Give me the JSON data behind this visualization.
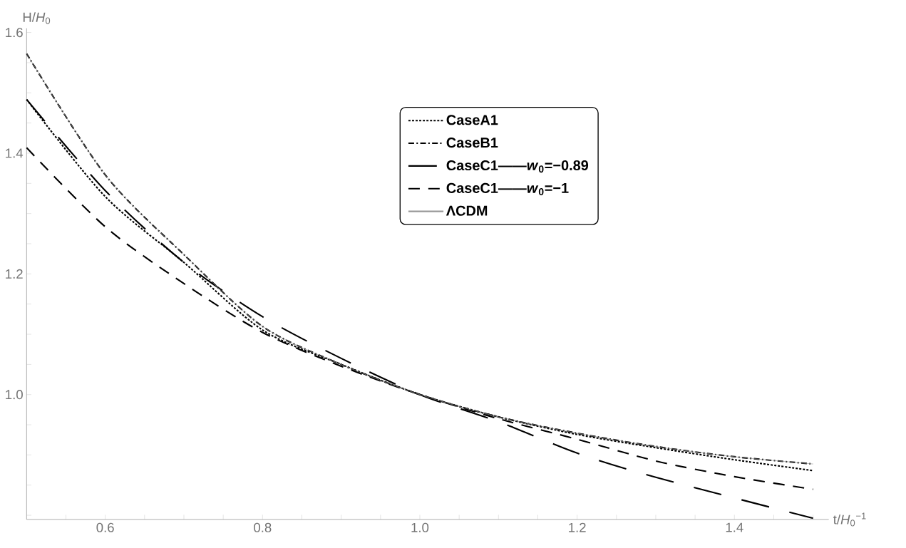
{
  "chart_data": {
    "type": "line",
    "xlabel": "t/*H*$_{0}$$^{−1}$",
    "ylabel": "H/*H*$_{0}$",
    "x": [
      0.5,
      0.6,
      0.7,
      0.8,
      0.9,
      1.0,
      1.1,
      1.2,
      1.3,
      1.4,
      1.5
    ],
    "series": [
      {
        "name": "CaseA1",
        "color": "#000000",
        "line_style": "dotted",
        "values": [
          1.489,
          1.328,
          1.219,
          1.107,
          1.05,
          1.0,
          0.963,
          0.934,
          0.912,
          0.892,
          0.874
        ]
      },
      {
        "name": "CaseB1",
        "color": "#000000",
        "line_style": "dashdot",
        "values": [
          1.565,
          1.364,
          1.232,
          1.113,
          1.05,
          1.0,
          0.963,
          0.936,
          0.914,
          0.897,
          0.885
        ]
      },
      {
        "name": "CaseC1——*w*$_{0}$=−0.89",
        "color": "#000000",
        "line_style": "long dashed",
        "values": [
          1.489,
          1.338,
          1.219,
          1.129,
          1.06,
          1.0,
          0.955,
          0.903,
          0.863,
          null,
          0.795
        ]
      },
      {
        "name": "CaseC1——*w*$_{0}$=−1",
        "color": "#000000",
        "line_style": "dashed",
        "values": [
          1.409,
          1.278,
          1.184,
          1.103,
          1.047,
          1.0,
          0.96,
          0.926,
          0.89,
          0.864,
          0.843
        ]
      },
      {
        "name": "ΛCDM",
        "color": "#999999",
        "line_style": "solid",
        "values": [
          1.565,
          1.364,
          1.232,
          1.113,
          1.05,
          1.0,
          0.963,
          0.936,
          0.914,
          0.897,
          0.885
        ]
      }
    ],
    "xlim": [
      0.5,
      1.52
    ],
    "ylim": [
      0.793,
      1.607
    ],
    "xticks": [
      {
        "value": 0.55,
        "label": null
      },
      0.6,
      {
        "value": 0.65,
        "label": null
      },
      {
        "value": 0.7,
        "label": null
      },
      {
        "value": 0.75,
        "label": null
      },
      0.8,
      {
        "value": 0.85,
        "label": null
      },
      {
        "value": 0.9,
        "label": null
      },
      {
        "value": 0.95,
        "label": null
      },
      {
        "value": 1,
        "label": "1.0"
      },
      {
        "value": 1.05,
        "label": null
      },
      {
        "value": 1.1,
        "label": null
      },
      {
        "value": 1.15,
        "label": null
      },
      1.2,
      {
        "value": 1.25,
        "label": null
      },
      {
        "value": 1.3,
        "label": null
      },
      {
        "value": 1.35,
        "label": null
      },
      1.4,
      {
        "value": 1.45,
        "label": null
      },
      {
        "value": 1.5,
        "label": null
      }
    ],
    "yticks": [
      {
        "value": 0.8,
        "label": null
      },
      {
        "value": 0.85,
        "label": null
      },
      {
        "value": 0.9,
        "label": null
      },
      {
        "value": 0.95,
        "label": null
      },
      {
        "value": 1,
        "label": "1.0"
      },
      {
        "value": 1.05,
        "label": null
      },
      {
        "value": 1.1,
        "label": null
      },
      {
        "value": 1.15,
        "label": null
      },
      1.2,
      {
        "value": 1.25,
        "label": null
      },
      {
        "value": 1.3,
        "label": null
      },
      {
        "value": 1.35,
        "label": null
      },
      1.4,
      {
        "value": 1.45,
        "label": null
      },
      {
        "value": 1.5,
        "label": null
      },
      {
        "value": 1.55,
        "label": null
      },
      1.6
    ],
    "legend": "top",
    "grid": false
  }
}
